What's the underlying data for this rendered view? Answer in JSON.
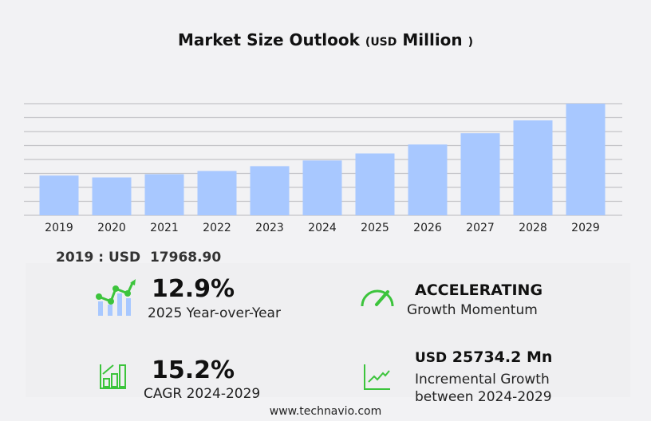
{
  "title": {
    "main": "Market Size Outlook",
    "open": "(",
    "unit": "USD",
    "unit_rest": "Million",
    "close": ")"
  },
  "chart_data": {
    "type": "bar",
    "categories": [
      "2019",
      "2020",
      "2021",
      "2022",
      "2023",
      "2024",
      "2025",
      "2026",
      "2027",
      "2028",
      "2029"
    ],
    "values": [
      17968.9,
      17130,
      18590,
      20050,
      22230,
      24790,
      27980,
      32030,
      37130,
      42960,
      50520
    ],
    "ylim": [
      0,
      50520
    ],
    "grid": true,
    "bar_color": "#a8c8ff"
  },
  "base_value": {
    "label": "2019 : USD",
    "value": "17968.90"
  },
  "stats": {
    "yoy": {
      "value": "12.9%",
      "label": "2025 Year-over-Year",
      "icon": "trend-chart-icon"
    },
    "momentum": {
      "value": "ACCELERATING",
      "label": "Growth Momentum",
      "icon": "speedometer-icon"
    },
    "cagr": {
      "value": "15.2%",
      "label": "CAGR 2024-2029",
      "icon": "bar-growth-icon"
    },
    "incremental": {
      "prefix": "USD",
      "value": "25734.2 Mn",
      "label1": "Incremental Growth",
      "label2": "between 2024-2029",
      "icon": "line-growth-icon"
    }
  },
  "accent_color": "#3cc43c",
  "footer": "www.technavio.com"
}
